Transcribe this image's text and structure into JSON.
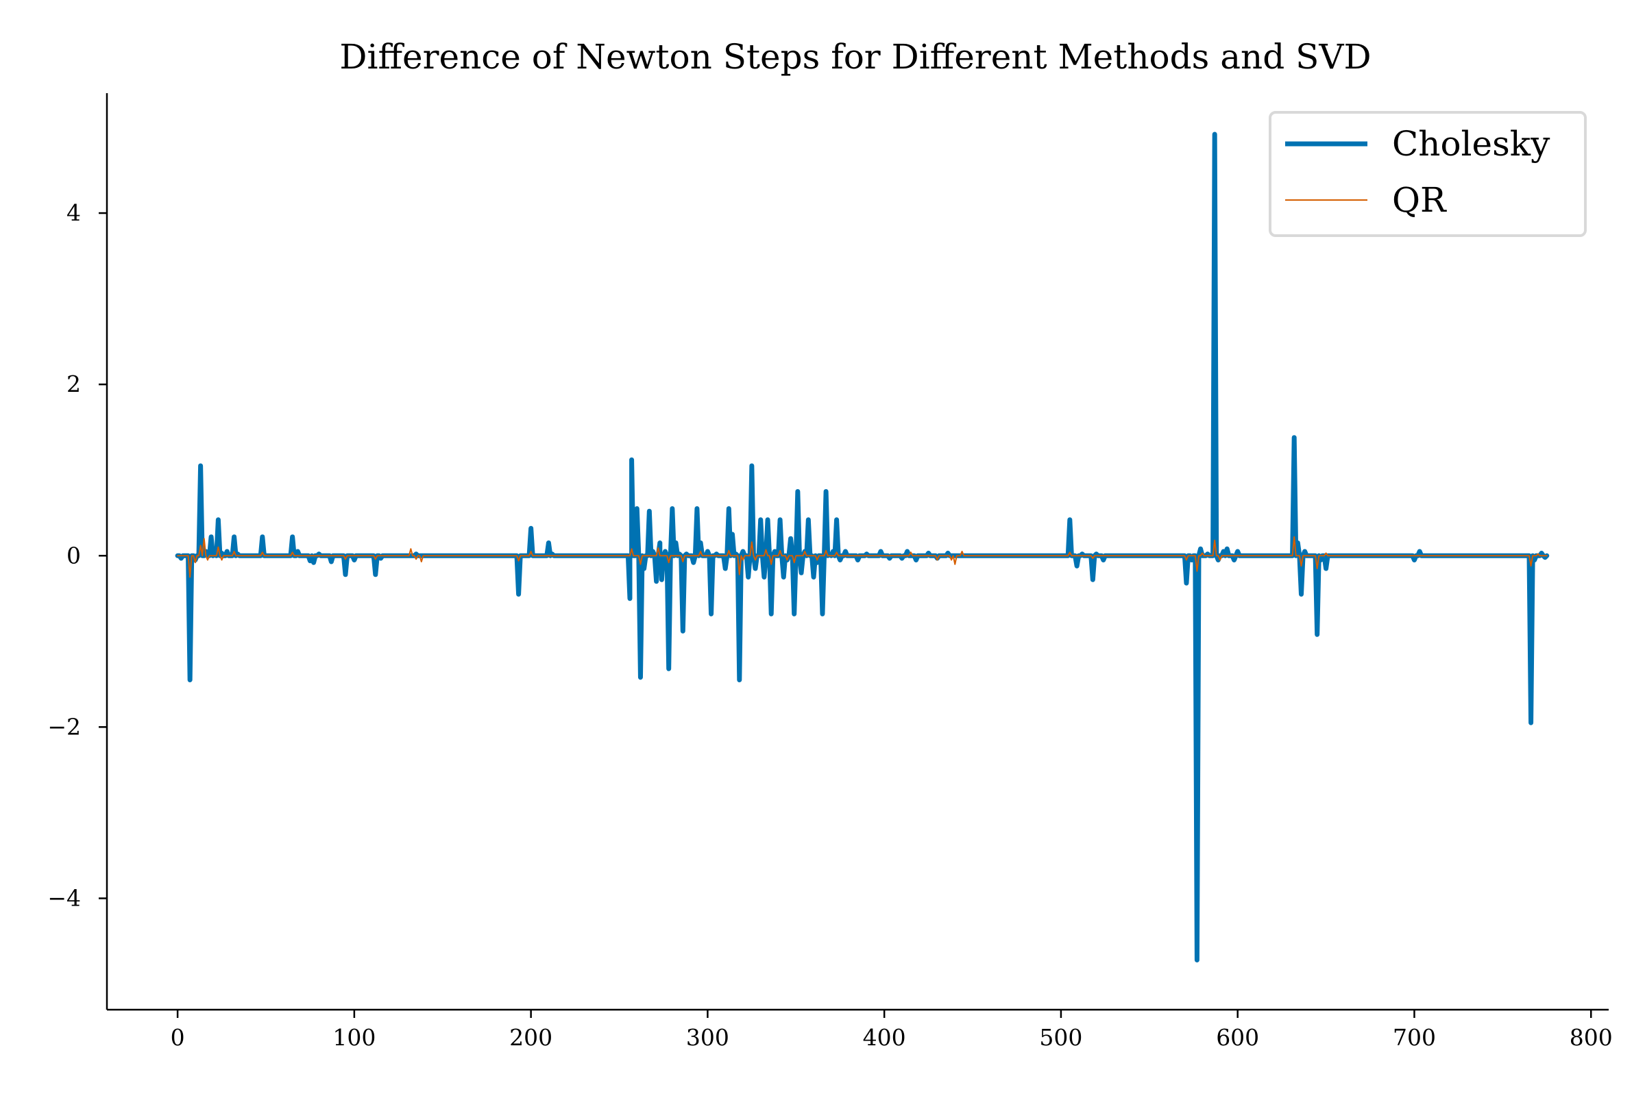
{
  "chart_data": {
    "type": "line",
    "title": "Difference of Newton Steps for Different Methods and SVD",
    "xlabel": "",
    "ylabel": "",
    "xlim": [
      -40,
      810
    ],
    "ylim": [
      -5.3,
      5.4
    ],
    "xticks": [
      0,
      100,
      200,
      300,
      400,
      500,
      600,
      700,
      800
    ],
    "xtick_labels": [
      "0",
      "100",
      "200",
      "300",
      "400",
      "500",
      "600",
      "700",
      "800"
    ],
    "yticks": [
      -4,
      -2,
      0,
      2,
      4
    ],
    "ytick_labels": [
      "−4",
      "−2",
      "0",
      "2",
      "4"
    ],
    "grid": false,
    "legend_position": "top-right",
    "x_range": [
      0,
      775
    ],
    "series": [
      {
        "name": "Cholesky",
        "color": "#0072B2",
        "line_width": "thick",
        "spikes": [
          [
            2,
            -0.03
          ],
          [
            7,
            -1.45
          ],
          [
            10,
            -0.05
          ],
          [
            13,
            1.05
          ],
          [
            16,
            0.05
          ],
          [
            19,
            0.22
          ],
          [
            21,
            0.05
          ],
          [
            23,
            0.42
          ],
          [
            25,
            0.03
          ],
          [
            28,
            0.05
          ],
          [
            32,
            0.22
          ],
          [
            34,
            0.02
          ],
          [
            48,
            0.22
          ],
          [
            65,
            0.22
          ],
          [
            68,
            0.05
          ],
          [
            75,
            -0.06
          ],
          [
            77,
            -0.08
          ],
          [
            80,
            0.02
          ],
          [
            87,
            -0.07
          ],
          [
            95,
            -0.22
          ],
          [
            100,
            -0.05
          ],
          [
            112,
            -0.22
          ],
          [
            115,
            -0.03
          ],
          [
            135,
            0.02
          ],
          [
            193,
            -0.45
          ],
          [
            200,
            0.32
          ],
          [
            210,
            0.15
          ],
          [
            212,
            0.02
          ],
          [
            256,
            -0.5
          ],
          [
            257,
            1.12
          ],
          [
            260,
            0.55
          ],
          [
            262,
            -1.42
          ],
          [
            264,
            -0.15
          ],
          [
            267,
            0.52
          ],
          [
            269,
            0.05
          ],
          [
            271,
            -0.3
          ],
          [
            273,
            0.15
          ],
          [
            274,
            -0.28
          ],
          [
            276,
            0.05
          ],
          [
            278,
            -1.32
          ],
          [
            280,
            0.55
          ],
          [
            282,
            0.15
          ],
          [
            284,
            0.02
          ],
          [
            286,
            -0.88
          ],
          [
            288,
            0.02
          ],
          [
            292,
            -0.08
          ],
          [
            294,
            0.55
          ],
          [
            296,
            0.15
          ],
          [
            300,
            0.05
          ],
          [
            302,
            -0.68
          ],
          [
            305,
            0.02
          ],
          [
            310,
            -0.15
          ],
          [
            312,
            0.55
          ],
          [
            314,
            0.25
          ],
          [
            316,
            0.02
          ],
          [
            318,
            -1.45
          ],
          [
            320,
            0.05
          ],
          [
            323,
            -0.25
          ],
          [
            325,
            1.05
          ],
          [
            327,
            -0.15
          ],
          [
            330,
            0.42
          ],
          [
            332,
            -0.25
          ],
          [
            334,
            0.42
          ],
          [
            336,
            -0.68
          ],
          [
            338,
            0.05
          ],
          [
            341,
            0.42
          ],
          [
            343,
            -0.25
          ],
          [
            345,
            -0.05
          ],
          [
            347,
            0.2
          ],
          [
            349,
            -0.68
          ],
          [
            351,
            0.75
          ],
          [
            353,
            -0.2
          ],
          [
            355,
            0.05
          ],
          [
            357,
            0.42
          ],
          [
            360,
            -0.25
          ],
          [
            362,
            -0.08
          ],
          [
            365,
            -0.68
          ],
          [
            367,
            0.75
          ],
          [
            369,
            0.02
          ],
          [
            371,
            0.05
          ],
          [
            373,
            0.42
          ],
          [
            375,
            -0.05
          ],
          [
            378,
            0.05
          ],
          [
            385,
            -0.05
          ],
          [
            390,
            0.02
          ],
          [
            398,
            0.05
          ],
          [
            403,
            -0.03
          ],
          [
            410,
            -0.03
          ],
          [
            413,
            0.05
          ],
          [
            418,
            -0.05
          ],
          [
            425,
            0.03
          ],
          [
            430,
            -0.03
          ],
          [
            436,
            0.03
          ],
          [
            505,
            0.42
          ],
          [
            509,
            -0.12
          ],
          [
            512,
            0.02
          ],
          [
            518,
            -0.28
          ],
          [
            520,
            0.02
          ],
          [
            524,
            -0.05
          ],
          [
            571,
            -0.32
          ],
          [
            574,
            -0.05
          ],
          [
            577,
            -4.72
          ],
          [
            579,
            0.08
          ],
          [
            583,
            0.02
          ],
          [
            587,
            4.92
          ],
          [
            589,
            -0.05
          ],
          [
            592,
            0.05
          ],
          [
            594,
            0.08
          ],
          [
            598,
            -0.05
          ],
          [
            600,
            0.05
          ],
          [
            632,
            1.38
          ],
          [
            634,
            0.15
          ],
          [
            636,
            -0.45
          ],
          [
            638,
            0.05
          ],
          [
            645,
            -0.92
          ],
          [
            647,
            -0.05
          ],
          [
            650,
            -0.15
          ],
          [
            700,
            -0.05
          ],
          [
            703,
            0.05
          ],
          [
            766,
            -1.95
          ],
          [
            768,
            -0.05
          ],
          [
            772,
            0.03
          ],
          [
            774,
            -0.02
          ]
        ]
      },
      {
        "name": "QR",
        "color": "#D55E00",
        "line_width": "thin",
        "spikes": [
          [
            7,
            -0.25
          ],
          [
            10,
            -0.08
          ],
          [
            13,
            0.12
          ],
          [
            15,
            0.2
          ],
          [
            17,
            -0.05
          ],
          [
            23,
            0.1
          ],
          [
            25,
            -0.05
          ],
          [
            32,
            0.05
          ],
          [
            48,
            0.04
          ],
          [
            65,
            0.04
          ],
          [
            95,
            -0.04
          ],
          [
            112,
            -0.04
          ],
          [
            132,
            0.08
          ],
          [
            135,
            -0.04
          ],
          [
            138,
            -0.07
          ],
          [
            193,
            -0.06
          ],
          [
            200,
            0.05
          ],
          [
            257,
            0.08
          ],
          [
            262,
            -0.1
          ],
          [
            272,
            0.09
          ],
          [
            278,
            -0.08
          ],
          [
            286,
            -0.07
          ],
          [
            296,
            0.05
          ],
          [
            312,
            0.06
          ],
          [
            318,
            -0.22
          ],
          [
            320,
            -0.05
          ],
          [
            325,
            0.16
          ],
          [
            327,
            -0.05
          ],
          [
            333,
            0.07
          ],
          [
            336,
            -0.1
          ],
          [
            341,
            0.06
          ],
          [
            345,
            -0.05
          ],
          [
            349,
            -0.08
          ],
          [
            355,
            0.05
          ],
          [
            362,
            -0.05
          ],
          [
            367,
            0.06
          ],
          [
            373,
            0.04
          ],
          [
            415,
            0.04
          ],
          [
            430,
            -0.05
          ],
          [
            438,
            -0.05
          ],
          [
            440,
            -0.1
          ],
          [
            444,
            0.05
          ],
          [
            505,
            0.04
          ],
          [
            518,
            -0.03
          ],
          [
            571,
            -0.05
          ],
          [
            577,
            -0.18
          ],
          [
            580,
            0.03
          ],
          [
            587,
            0.18
          ],
          [
            590,
            -0.05
          ],
          [
            632,
            0.22
          ],
          [
            636,
            -0.12
          ],
          [
            645,
            -0.15
          ],
          [
            650,
            0.03
          ],
          [
            766,
            -0.12
          ],
          [
            770,
            0.02
          ]
        ]
      }
    ]
  }
}
